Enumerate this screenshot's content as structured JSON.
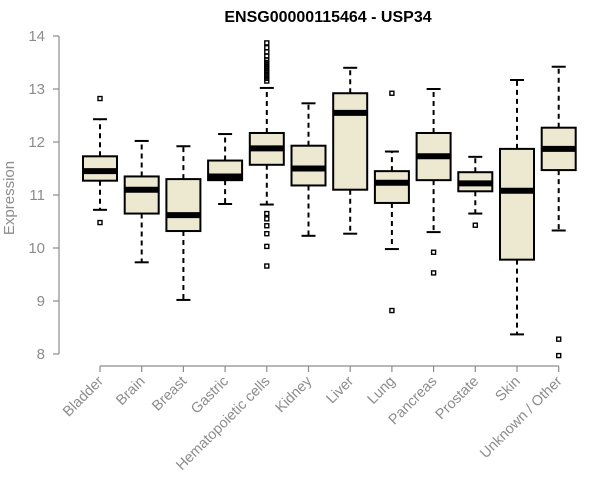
{
  "chart_data": {
    "type": "boxplot",
    "title": "ENSG00000115464 - USP34",
    "xlabel": "",
    "ylabel": "Expression",
    "ylim": [
      8,
      14
    ],
    "yticks": [
      8,
      9,
      10,
      11,
      12,
      13,
      14
    ],
    "box_color": "#ede8d0",
    "categories": [
      "Bladder",
      "Brain",
      "Breast",
      "Gastric",
      "Hematopoietic cells",
      "Kidney",
      "Liver",
      "Lung",
      "Pancreas",
      "Prostate",
      "Skin",
      "Unknown / Other"
    ],
    "boxes": [
      {
        "name": "Bladder",
        "whisker_low": 10.72,
        "q1": 11.27,
        "median": 11.45,
        "q3": 11.73,
        "whisker_high": 12.43,
        "outliers": [
          10.48,
          12.82
        ]
      },
      {
        "name": "Brain",
        "whisker_low": 9.73,
        "q1": 10.65,
        "median": 11.1,
        "q3": 11.35,
        "whisker_high": 12.02,
        "outliers": []
      },
      {
        "name": "Breast",
        "whisker_low": 9.02,
        "q1": 10.32,
        "median": 10.62,
        "q3": 11.3,
        "whisker_high": 11.92,
        "outliers": []
      },
      {
        "name": "Gastric",
        "whisker_low": 10.83,
        "q1": 11.28,
        "median": 11.35,
        "q3": 11.65,
        "whisker_high": 12.15,
        "outliers": []
      },
      {
        "name": "Hematopoietic cells",
        "whisker_low": 10.82,
        "q1": 11.57,
        "median": 11.88,
        "q3": 12.17,
        "whisker_high": 13.02,
        "outliers": [
          9.66,
          10.03,
          10.27,
          10.42,
          10.55,
          10.65,
          13.15,
          13.2,
          13.25,
          13.3,
          13.35,
          13.4,
          13.45,
          13.5,
          13.55,
          13.62,
          13.7,
          13.78,
          13.87
        ]
      },
      {
        "name": "Kidney",
        "whisker_low": 10.23,
        "q1": 11.18,
        "median": 11.5,
        "q3": 11.93,
        "whisker_high": 12.73,
        "outliers": []
      },
      {
        "name": "Liver",
        "whisker_low": 10.27,
        "q1": 11.1,
        "median": 12.55,
        "q3": 12.92,
        "whisker_high": 13.4,
        "outliers": []
      },
      {
        "name": "Lung",
        "whisker_low": 9.98,
        "q1": 10.85,
        "median": 11.23,
        "q3": 11.45,
        "whisker_high": 11.82,
        "outliers": [
          8.82,
          12.92
        ]
      },
      {
        "name": "Pancreas",
        "whisker_low": 10.3,
        "q1": 11.28,
        "median": 11.73,
        "q3": 12.17,
        "whisker_high": 13.0,
        "outliers": [
          9.53,
          9.92
        ]
      },
      {
        "name": "Prostate",
        "whisker_low": 10.65,
        "q1": 11.07,
        "median": 11.22,
        "q3": 11.43,
        "whisker_high": 11.72,
        "outliers": [
          10.43
        ]
      },
      {
        "name": "Skin",
        "whisker_low": 8.37,
        "q1": 9.78,
        "median": 11.08,
        "q3": 11.87,
        "whisker_high": 13.17,
        "outliers": []
      },
      {
        "name": "Unknown / Other",
        "whisker_low": 10.33,
        "q1": 11.47,
        "median": 11.87,
        "q3": 12.27,
        "whisker_high": 13.42,
        "outliers": [
          7.97,
          8.28
        ]
      }
    ]
  }
}
